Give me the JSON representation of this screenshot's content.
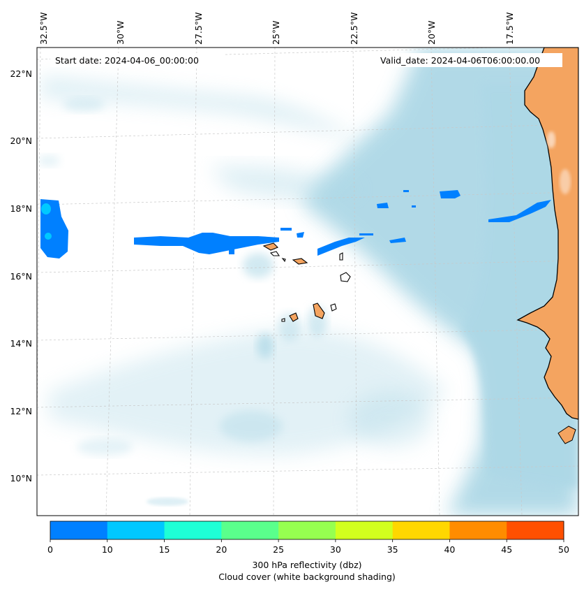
{
  "map": {
    "start_date": "Start date: 2024-04-06_00:00:00",
    "valid_date": "Valid_date: 2024-04-06T06:00:00.00",
    "lon_labels": [
      "32.5°W",
      "30°W",
      "27.5°W",
      "25°W",
      "22.5°W",
      "20°W",
      "17.5°W"
    ],
    "lat_labels": [
      "22°N",
      "20°N",
      "18°N",
      "16°N",
      "14°N",
      "12°N",
      "10°N"
    ],
    "colors": {
      "land": "#f4a460",
      "cloud": "#add8e6",
      "reflectivity_low": "#0080ff",
      "reflectivity_mid": "#00c8ff",
      "gridline": "#cccccc"
    }
  },
  "colorbar": {
    "ticks": [
      "0",
      "10",
      "15",
      "20",
      "25",
      "30",
      "35",
      "40",
      "45",
      "50"
    ],
    "colors": [
      "#0080ff",
      "#00c8ff",
      "#1effd6",
      "#5aff8c",
      "#96ff50",
      "#d2ff1e",
      "#ffd700",
      "#ff8c00",
      "#ff5000"
    ],
    "label_line1": "300 hPa reflectivity (dbz)",
    "label_line2": "Cloud cover (white background shading)"
  }
}
